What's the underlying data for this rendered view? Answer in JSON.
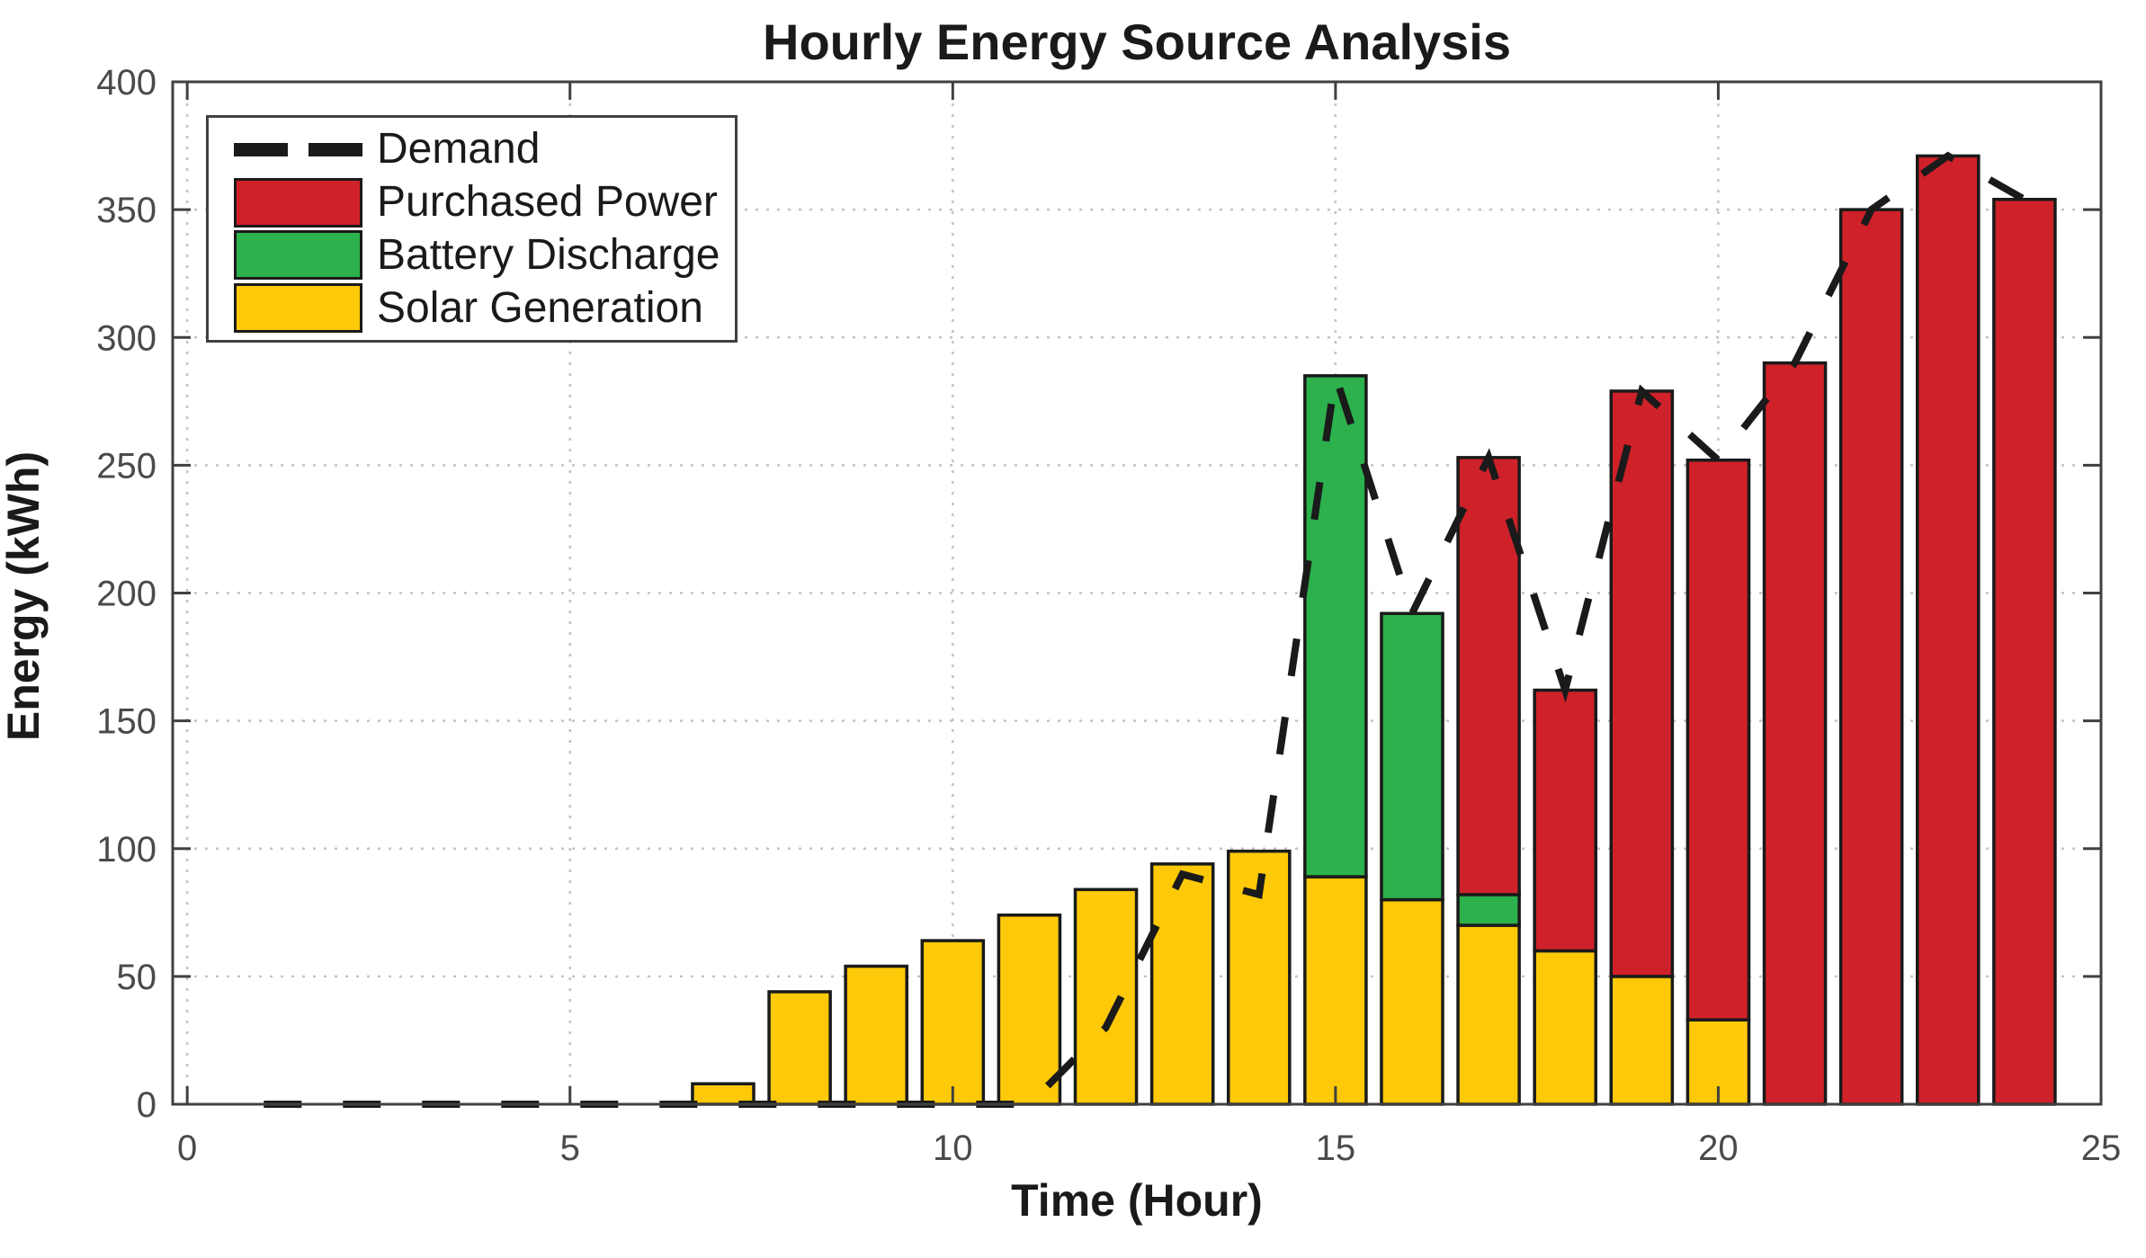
{
  "chart_data": {
    "type": "bar",
    "subtype": "stacked-bars-with-dashed-line",
    "title": "Hourly Energy Source Analysis",
    "xlabel": "Time (Hour)",
    "ylabel": "Energy (kWh)",
    "xlim": [
      -0.19,
      25.0
    ],
    "ylim": [
      0,
      400
    ],
    "xticks": [
      0,
      5,
      10,
      15,
      20,
      25
    ],
    "yticks": [
      0,
      50,
      100,
      150,
      200,
      250,
      300,
      350,
      400
    ],
    "grid": "dotted",
    "bar_width": 0.8,
    "x": [
      1,
      2,
      3,
      4,
      5,
      6,
      7,
      8,
      9,
      10,
      11,
      12,
      13,
      14,
      15,
      16,
      17,
      18,
      19,
      20,
      21,
      22,
      23,
      24
    ],
    "series": [
      {
        "name": "Solar Generation",
        "color": "#fdc908",
        "values": [
          0,
          0,
          0,
          0,
          0,
          0,
          8,
          44,
          54,
          64,
          74,
          84,
          94,
          99,
          89,
          80,
          70,
          60,
          50,
          33,
          0,
          0,
          0,
          0
        ]
      },
      {
        "name": "Battery Discharge",
        "color": "#2cb14c",
        "values": [
          0,
          0,
          0,
          0,
          0,
          0,
          0,
          0,
          0,
          0,
          0,
          0,
          0,
          0,
          196,
          112,
          12,
          0,
          0,
          0,
          0,
          0,
          0,
          0
        ]
      },
      {
        "name": "Purchased Power",
        "color": "#cf2129",
        "values": [
          0,
          0,
          0,
          0,
          0,
          0,
          0,
          0,
          0,
          0,
          0,
          0,
          0,
          0,
          0,
          0,
          171,
          102,
          229,
          219,
          290,
          350,
          371,
          354
        ]
      }
    ],
    "line": {
      "name": "Demand",
      "color": "#1a1a1a",
      "style": "dashed",
      "width": 8,
      "values": [
        0,
        0,
        0,
        0,
        0,
        0,
        0,
        0,
        0,
        0,
        0,
        30,
        90,
        82,
        285,
        192,
        253,
        162,
        279,
        252,
        290,
        350,
        371,
        354
      ]
    },
    "legend": {
      "position": "upper-left",
      "items": [
        {
          "label": "Demand",
          "swatch": "dashed-line",
          "color": "#1a1a1a"
        },
        {
          "label": "Purchased Power",
          "swatch": "patch",
          "color": "#cf2129"
        },
        {
          "label": "Battery Discharge",
          "swatch": "patch",
          "color": "#2cb14c"
        },
        {
          "label": "Solar Generation",
          "swatch": "patch",
          "color": "#fdc908"
        }
      ]
    },
    "colors": {
      "spine": "#404040",
      "grid": "#c3c3c3",
      "tick_label": "#4a4a4a",
      "bar_edge": "#1a1a1a"
    }
  }
}
